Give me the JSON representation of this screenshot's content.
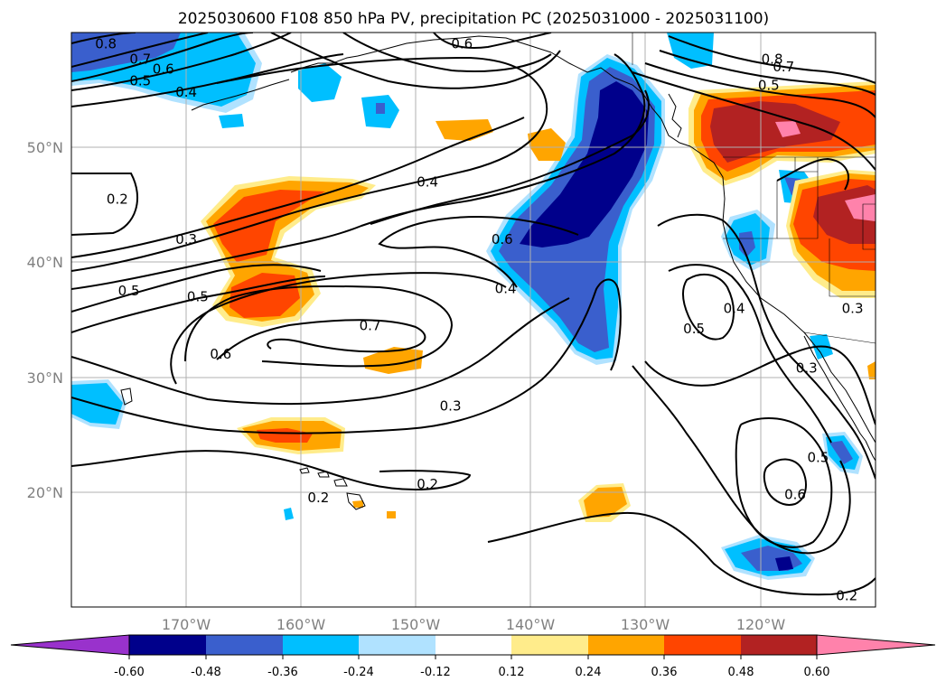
{
  "title": "2025030600 F108 850 hPa PV, precipitation PC (2025031000 - 2025031100)",
  "map": {
    "lon_range": [
      -180,
      -110
    ],
    "lat_range": [
      10,
      60
    ],
    "lon_ticks": [
      {
        "lon": -170,
        "label": "170°W"
      },
      {
        "lon": -160,
        "label": "160°W"
      },
      {
        "lon": -150,
        "label": "150°W"
      },
      {
        "lon": -140,
        "label": "140°W"
      },
      {
        "lon": -130,
        "label": "130°W"
      },
      {
        "lon": -120,
        "label": "120°W"
      }
    ],
    "lat_ticks": [
      {
        "lat": 50,
        "label": "50°N"
      },
      {
        "lat": 40,
        "label": "40°N"
      },
      {
        "lat": 30,
        "label": "30°N"
      },
      {
        "lat": 20,
        "label": "20°N"
      }
    ],
    "grid": true
  },
  "colorbar": {
    "colors": [
      "#9932CC",
      "#00008B",
      "#3A5FCD",
      "#00BFFF",
      "#B0E2FF",
      "#FFFFFF",
      "#FFEC8B",
      "#FFA500",
      "#FF4500",
      "#B22222",
      "#FF82AB"
    ],
    "ticks": [
      "-0.60",
      "-0.48",
      "-0.36",
      "-0.24",
      "-0.12",
      "0.12",
      "0.24",
      "0.36",
      "0.48",
      "0.60"
    ],
    "extend": "both"
  },
  "contour_labels": [
    {
      "text": "0.8",
      "lon": -177,
      "lat": 59
    },
    {
      "text": "0.7",
      "lon": -174,
      "lat": 57.7
    },
    {
      "text": "0.6",
      "lon": -172,
      "lat": 56.8
    },
    {
      "text": "0.5",
      "lon": -174,
      "lat": 55.8
    },
    {
      "text": "0.4",
      "lon": -170,
      "lat": 54.8
    },
    {
      "text": "0.6",
      "lon": -146,
      "lat": 59
    },
    {
      "text": "0.4",
      "lon": -149,
      "lat": 47
    },
    {
      "text": "0.2",
      "lon": -176,
      "lat": 45.5
    },
    {
      "text": "0.3",
      "lon": -170,
      "lat": 42
    },
    {
      "text": "0.5",
      "lon": -175,
      "lat": 37.5
    },
    {
      "text": "0.5",
      "lon": -169,
      "lat": 37
    },
    {
      "text": "0.6",
      "lon": -142.5,
      "lat": 42
    },
    {
      "text": "0.4",
      "lon": -142.2,
      "lat": 37.7
    },
    {
      "text": "0.7",
      "lon": -154,
      "lat": 34.5
    },
    {
      "text": "0.6",
      "lon": -167,
      "lat": 32
    },
    {
      "text": "0.3",
      "lon": -147,
      "lat": 27.5
    },
    {
      "text": "0.2",
      "lon": -149,
      "lat": 20.7
    },
    {
      "text": "0.2",
      "lon": -158.5,
      "lat": 19.5
    },
    {
      "text": "0.8",
      "lon": -119,
      "lat": 57.7
    },
    {
      "text": "0.7",
      "lon": -118,
      "lat": 57
    },
    {
      "text": "0.5",
      "lon": -119.3,
      "lat": 55.4
    },
    {
      "text": "0.3",
      "lon": -112,
      "lat": 36
    },
    {
      "text": "0.4",
      "lon": -122.3,
      "lat": 36
    },
    {
      "text": "0.5",
      "lon": -125.8,
      "lat": 34.2
    },
    {
      "text": "0.3",
      "lon": -116,
      "lat": 30.8
    },
    {
      "text": "0.5",
      "lon": -115,
      "lat": 23
    },
    {
      "text": "0.6",
      "lon": -117,
      "lat": 19.8
    },
    {
      "text": "0.2",
      "lon": -112.5,
      "lat": 11
    }
  ]
}
